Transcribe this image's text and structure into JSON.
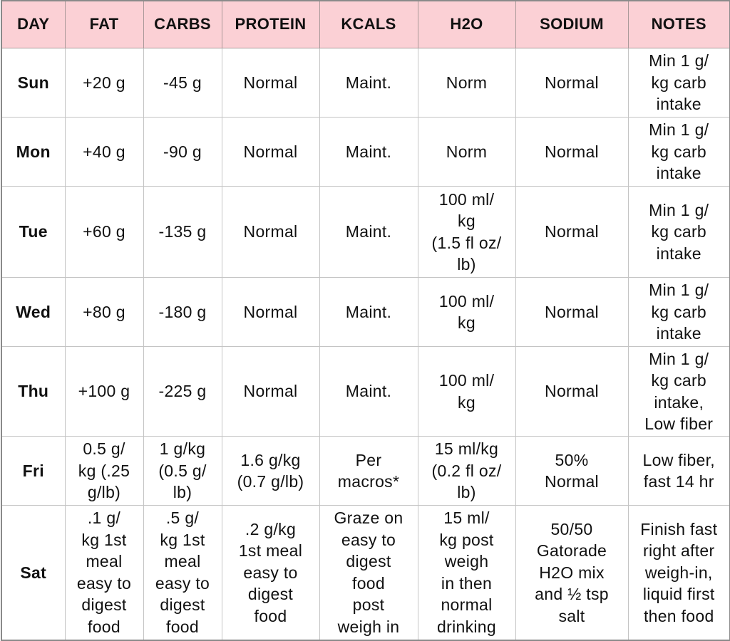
{
  "header_bg": "#fbd0d5",
  "columns": [
    "DAY",
    "FAT",
    "CARBS",
    "PROTEIN",
    "KCALS",
    "H2O",
    "SODIUM",
    "NOTES"
  ],
  "rows": [
    [
      "Sun",
      "+20 g",
      "-45 g",
      "Normal",
      "Maint.",
      "Norm",
      "Normal",
      "Min 1 g/\nkg carb\nintake"
    ],
    [
      "Mon",
      "+40 g",
      "-90 g",
      "Normal",
      "Maint.",
      "Norm",
      "Normal",
      "Min 1 g/\nkg carb\nintake"
    ],
    [
      "Tue",
      "+60 g",
      "-135 g",
      "Normal",
      "Maint.",
      "100 ml/\nkg\n(1.5 fl oz/\nlb)",
      "Normal",
      "Min 1 g/\nkg carb\nintake"
    ],
    [
      "Wed",
      "+80 g",
      "-180 g",
      "Normal",
      "Maint.",
      "100 ml/\nkg",
      "Normal",
      "Min 1 g/\nkg carb\nintake"
    ],
    [
      "Thu",
      "+100 g",
      "-225 g",
      "Normal",
      "Maint.",
      "100 ml/\nkg",
      "Normal",
      "Min 1 g/\nkg carb\nintake,\nLow fiber"
    ],
    [
      "Fri",
      "0.5 g/\nkg (.25\ng/lb)",
      "1 g/kg\n(0.5 g/\nlb)",
      "1.6 g/kg\n(0.7 g/lb)",
      "Per\nmacros*",
      "15 ml/kg\n(0.2 fl oz/\nlb)",
      "50%\nNormal",
      "Low fiber,\nfast 14 hr"
    ],
    [
      "Sat",
      ".1 g/\nkg 1st\nmeal\neasy to\ndigest\nfood",
      ".5 g/\nkg 1st\nmeal\neasy to\ndigest\nfood",
      ".2 g/kg\n1st meal\neasy to\ndigest\nfood",
      "Graze on\neasy to\ndigest\nfood\npost\nweigh in",
      "15 ml/\nkg post\nweigh\nin then\nnormal\ndrinking",
      "50/50\nGatorade\nH2O mix\nand ½ tsp\nsalt",
      "Finish fast\nright after\nweigh-in,\nliquid first\nthen food"
    ]
  ]
}
